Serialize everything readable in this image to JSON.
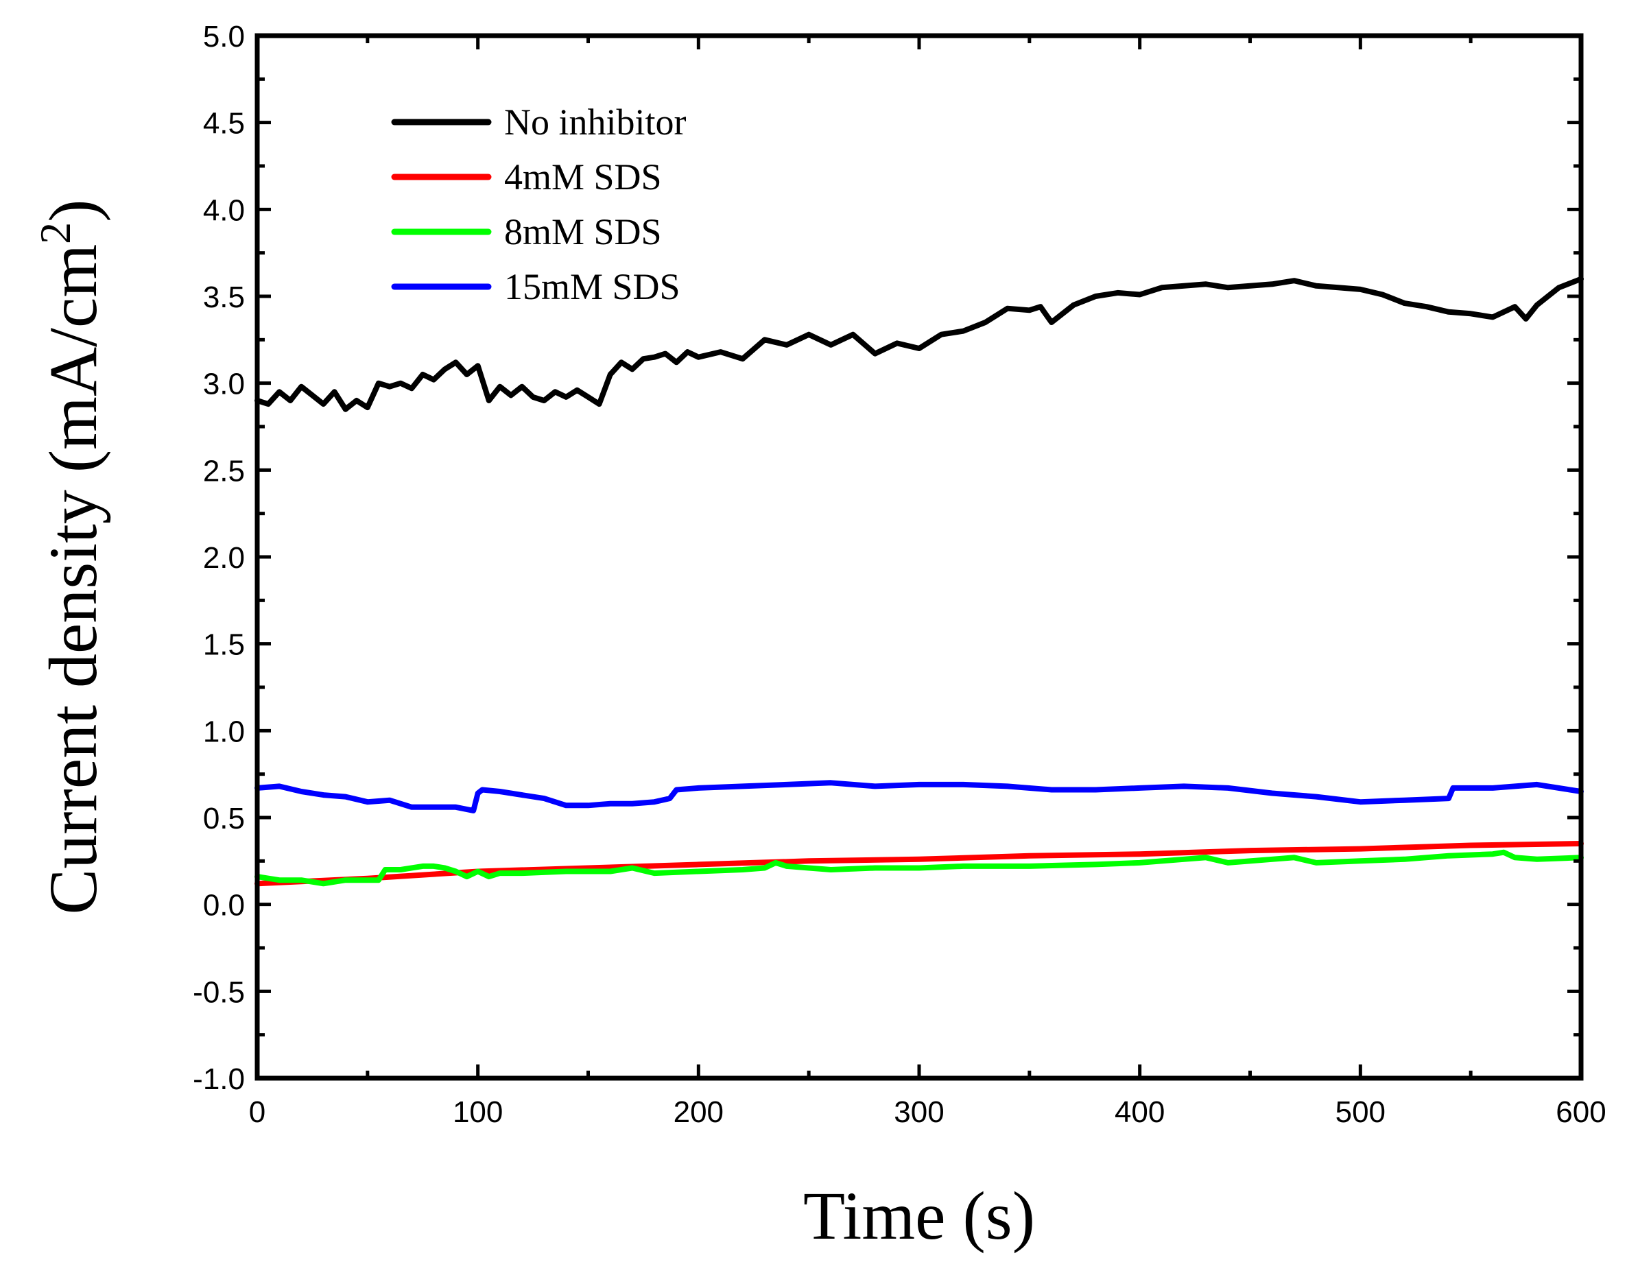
{
  "chart_data": {
    "type": "line",
    "title": "",
    "xlabel": "Time (s)",
    "ylabel": "Current density (mA/cm²)",
    "ylabel_main": "Current density (mA/cm",
    "ylabel_sup": "2",
    "ylabel_close": ")",
    "xlim": [
      0,
      600
    ],
    "ylim": [
      -1.0,
      5.0
    ],
    "xticks": [
      0,
      100,
      200,
      300,
      400,
      500,
      600
    ],
    "xtick_labels": [
      "0",
      "100",
      "200",
      "300",
      "400",
      "500",
      "600"
    ],
    "yticks": [
      -1.0,
      -0.5,
      0.0,
      0.5,
      1.0,
      1.5,
      2.0,
      2.5,
      3.0,
      3.5,
      4.0,
      4.5,
      5.0
    ],
    "ytick_labels": [
      "-1.0",
      "-0.5",
      "0.0",
      "0.5",
      "1.0",
      "1.5",
      "2.0",
      "2.5",
      "3.0",
      "3.5",
      "4.0",
      "4.5",
      "5.0"
    ],
    "grid": false,
    "legend_position": "top-left",
    "series": [
      {
        "name": "No inhibitor",
        "color": "#000000",
        "x": [
          0,
          5,
          10,
          15,
          20,
          25,
          30,
          35,
          40,
          45,
          50,
          55,
          60,
          65,
          70,
          75,
          80,
          85,
          90,
          95,
          100,
          105,
          110,
          115,
          120,
          125,
          130,
          135,
          140,
          145,
          150,
          155,
          160,
          165,
          170,
          175,
          180,
          185,
          190,
          195,
          200,
          210,
          220,
          230,
          240,
          250,
          260,
          270,
          280,
          290,
          300,
          310,
          320,
          330,
          340,
          350,
          355,
          360,
          370,
          380,
          390,
          400,
          410,
          420,
          430,
          440,
          450,
          460,
          470,
          480,
          490,
          500,
          510,
          520,
          530,
          540,
          550,
          560,
          570,
          575,
          580,
          590,
          600
        ],
        "values": [
          2.9,
          2.88,
          2.95,
          2.9,
          2.98,
          2.93,
          2.88,
          2.95,
          2.85,
          2.9,
          2.86,
          3.0,
          2.98,
          3.0,
          2.97,
          3.05,
          3.02,
          3.08,
          3.12,
          3.05,
          3.1,
          2.9,
          2.98,
          2.93,
          2.98,
          2.92,
          2.9,
          2.95,
          2.92,
          2.96,
          2.92,
          2.88,
          3.05,
          3.12,
          3.08,
          3.14,
          3.15,
          3.17,
          3.12,
          3.18,
          3.15,
          3.18,
          3.14,
          3.25,
          3.22,
          3.28,
          3.22,
          3.28,
          3.17,
          3.23,
          3.2,
          3.28,
          3.3,
          3.35,
          3.43,
          3.42,
          3.44,
          3.35,
          3.45,
          3.5,
          3.52,
          3.51,
          3.55,
          3.56,
          3.57,
          3.55,
          3.56,
          3.57,
          3.59,
          3.56,
          3.55,
          3.54,
          3.51,
          3.46,
          3.44,
          3.41,
          3.4,
          3.38,
          3.44,
          3.37,
          3.45,
          3.55,
          3.6
        ]
      },
      {
        "name": "4mM SDS",
        "color": "#ff0000",
        "x": [
          0,
          50,
          100,
          150,
          200,
          250,
          300,
          350,
          400,
          450,
          500,
          550,
          600
        ],
        "values": [
          0.12,
          0.15,
          0.19,
          0.21,
          0.23,
          0.25,
          0.26,
          0.28,
          0.29,
          0.31,
          0.32,
          0.34,
          0.35
        ]
      },
      {
        "name": "8mM SDS",
        "color": "#00ff00",
        "x": [
          0,
          10,
          20,
          30,
          40,
          50,
          55,
          58,
          65,
          75,
          80,
          85,
          90,
          95,
          100,
          105,
          110,
          120,
          140,
          160,
          170,
          180,
          200,
          220,
          230,
          235,
          240,
          250,
          260,
          280,
          300,
          320,
          350,
          380,
          400,
          420,
          430,
          440,
          460,
          470,
          480,
          500,
          520,
          540,
          560,
          565,
          570,
          580,
          600
        ],
        "values": [
          0.16,
          0.14,
          0.14,
          0.12,
          0.14,
          0.14,
          0.14,
          0.2,
          0.2,
          0.22,
          0.22,
          0.21,
          0.19,
          0.16,
          0.19,
          0.16,
          0.18,
          0.18,
          0.19,
          0.19,
          0.21,
          0.18,
          0.19,
          0.2,
          0.21,
          0.24,
          0.22,
          0.21,
          0.2,
          0.21,
          0.21,
          0.22,
          0.22,
          0.23,
          0.24,
          0.26,
          0.27,
          0.24,
          0.26,
          0.27,
          0.24,
          0.25,
          0.26,
          0.28,
          0.29,
          0.3,
          0.27,
          0.26,
          0.27
        ]
      },
      {
        "name": "15mM SDS",
        "color": "#0000ff",
        "x": [
          0,
          10,
          20,
          30,
          40,
          50,
          60,
          70,
          80,
          90,
          98,
          100,
          102,
          110,
          120,
          130,
          140,
          150,
          160,
          170,
          180,
          187,
          190,
          200,
          220,
          240,
          260,
          280,
          300,
          320,
          340,
          360,
          380,
          400,
          420,
          440,
          460,
          480,
          500,
          520,
          540,
          542,
          560,
          580,
          600
        ],
        "values": [
          0.67,
          0.68,
          0.65,
          0.63,
          0.62,
          0.59,
          0.6,
          0.56,
          0.56,
          0.56,
          0.54,
          0.64,
          0.66,
          0.65,
          0.63,
          0.61,
          0.57,
          0.57,
          0.58,
          0.58,
          0.59,
          0.61,
          0.66,
          0.67,
          0.68,
          0.69,
          0.7,
          0.68,
          0.69,
          0.69,
          0.68,
          0.66,
          0.66,
          0.67,
          0.68,
          0.67,
          0.64,
          0.62,
          0.59,
          0.6,
          0.61,
          0.67,
          0.67,
          0.69,
          0.65
        ]
      }
    ]
  }
}
